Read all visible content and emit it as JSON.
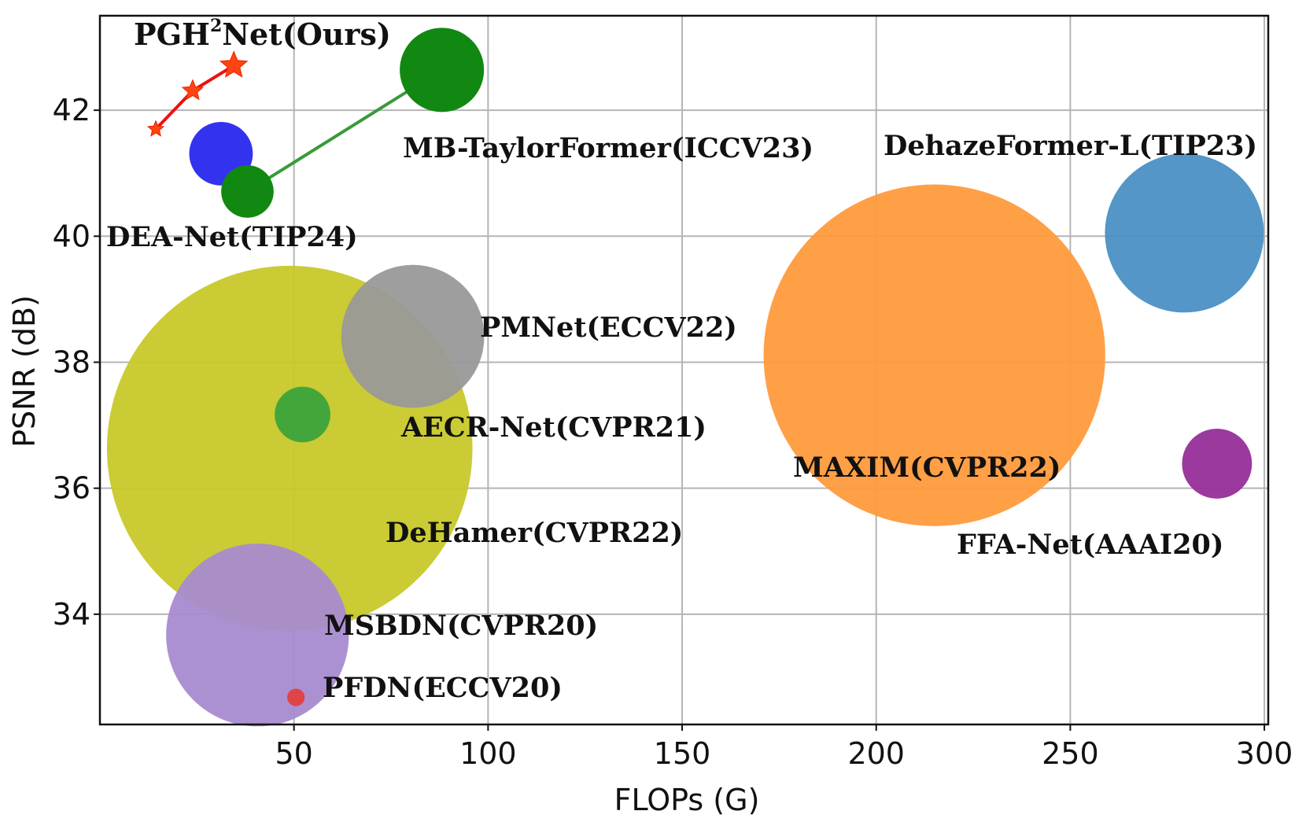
{
  "chart_data": {
    "type": "scatter",
    "xlabel": "FLOPs (G)",
    "ylabel": "PSNR (dB)",
    "xlim": [
      0,
      301
    ],
    "ylim": [
      32.25,
      43.5
    ],
    "xticks": [
      50,
      100,
      150,
      200,
      250,
      300
    ],
    "yticks": [
      34,
      36,
      38,
      40,
      42
    ],
    "grid": true,
    "points": [
      {
        "name": "DeHamer(CVPR22)",
        "label": "DeHamer(CVPR22)",
        "x": 48.9,
        "y": 36.63,
        "size": 23.0,
        "color": "#c8c82a"
      },
      {
        "name": "MAXIM(CVPR22)",
        "label": "MAXIM(CVPR22)",
        "x": 215.0,
        "y": 38.11,
        "size": 21.5,
        "color": "#ff9a3c"
      },
      {
        "name": "MSBDN(CVPR20)",
        "label": "MSBDN(CVPR20)",
        "x": 40.6,
        "y": 33.67,
        "size": 11.5,
        "color": "#a88bd0"
      },
      {
        "name": "DehazeFormer-L(TIP23)",
        "label": "DehazeFormer-L(TIP23)",
        "x": 279.4,
        "y": 40.05,
        "size": 10.0,
        "color": "#4a90c4"
      },
      {
        "name": "PMNet(ECCV22)",
        "label": "PMNet(ECCV22)",
        "x": 80.6,
        "y": 38.41,
        "size": 9.0,
        "color": "#999999"
      },
      {
        "name": "AECR-Net(CVPR21)",
        "label": "AECR-Net(CVPR21)",
        "x": 52.2,
        "y": 37.17,
        "size": 3.5,
        "color": "#3ba33b"
      },
      {
        "name": "FFA-Net(AAAI20)",
        "label": "FFA-Net(AAAI20)",
        "x": 287.8,
        "y": 36.39,
        "size": 4.4,
        "color": "#972e9a"
      },
      {
        "name": "PFDN(ECCV20)",
        "label": "PFDN(ECCV20)",
        "x": 50.5,
        "y": 32.68,
        "size": 1.1,
        "color": "#e04040"
      },
      {
        "name": "DEA-Net(TIP24)",
        "label": "DEA-Net(TIP24)",
        "x": 31.2,
        "y": 41.31,
        "size": 4.0,
        "color": "#2828ee"
      }
    ],
    "lines": [
      {
        "name": "MB-TaylorFormer(ICCV23)",
        "label": "MB-TaylorFormer(ICCV23)",
        "color": "#3a9a3a",
        "marker_color": "#118811",
        "x": [
          38.0,
          88.1
        ],
        "y": [
          40.71,
          42.64
        ],
        "sizes": [
          3.3,
          5.3
        ]
      },
      {
        "name": "PGH²Net(Ours)",
        "label_main": "PGH",
        "label_sup": "2",
        "label_rest": "Net(Ours)",
        "color": "#ee1111",
        "marker_color": "#ff4411",
        "x": [
          14.4,
          23.9,
          34.5
        ],
        "y": [
          41.7,
          42.31,
          42.71
        ],
        "sizes": [
          1.0,
          1.3,
          1.7
        ]
      }
    ]
  }
}
